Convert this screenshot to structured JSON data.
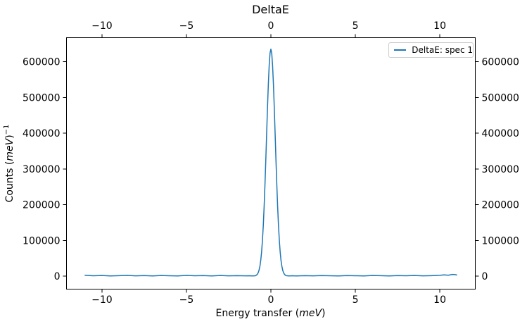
{
  "display": {
    "title": "DeltaE",
    "xlabel": {
      "pre": "Energy transfer (",
      "unit": "meV",
      "post": ")"
    },
    "ylabel": {
      "pre": "Counts (",
      "unit": "meV",
      "post": ")",
      "sup": "−1"
    },
    "legend_label": "DeltaE: spec 1"
  },
  "colors": {
    "line": "#1f77b4",
    "spine": "#000000",
    "text": "#000000",
    "legend_border": "#cccccc",
    "background": "#ffffff"
  },
  "chart_data": {
    "type": "line",
    "title": "DeltaE",
    "xlabel": "Energy transfer (meV)",
    "ylabel": "Counts (meV)^-1",
    "xlim": [
      -12.1,
      12.1
    ],
    "ylim": [
      -36000,
      667000
    ],
    "grid": false,
    "x_ticks": [
      -10,
      -5,
      0,
      5,
      10
    ],
    "x_tick_labels": [
      "−10",
      "−5",
      "0",
      "5",
      "10"
    ],
    "y_ticks": [
      0,
      100000,
      200000,
      300000,
      400000,
      500000,
      600000
    ],
    "y_tick_labels": [
      "0",
      "100000",
      "200000",
      "300000",
      "400000",
      "500000",
      "600000"
    ],
    "top_axis_mirrors_x": true,
    "right_axis_mirrors_y": true,
    "legend": {
      "position": "upper right",
      "entries": [
        "DeltaE: spec 1"
      ]
    },
    "series": [
      {
        "name": "DeltaE: spec 1",
        "color": "#1f77b4",
        "x": [
          -11.0,
          -10.5,
          -10.0,
          -9.5,
          -9.0,
          -8.5,
          -8.0,
          -7.5,
          -7.0,
          -6.5,
          -6.0,
          -5.5,
          -5.0,
          -4.5,
          -4.0,
          -3.5,
          -3.0,
          -2.5,
          -2.0,
          -1.5,
          -1.25,
          -1.1,
          -1.0,
          -0.95,
          -0.9,
          -0.85,
          -0.8,
          -0.75,
          -0.7,
          -0.65,
          -0.6,
          -0.55,
          -0.5,
          -0.45,
          -0.4,
          -0.35,
          -0.3,
          -0.25,
          -0.2,
          -0.15,
          -0.1,
          -0.05,
          0.0,
          0.05,
          0.1,
          0.15,
          0.2,
          0.25,
          0.3,
          0.35,
          0.4,
          0.45,
          0.5,
          0.55,
          0.6,
          0.65,
          0.7,
          0.75,
          0.8,
          0.85,
          0.9,
          0.95,
          1.0,
          1.1,
          1.25,
          1.5,
          2.0,
          2.5,
          3.0,
          3.5,
          4.0,
          4.5,
          5.0,
          5.5,
          6.0,
          6.5,
          7.0,
          7.5,
          8.0,
          8.5,
          9.0,
          9.5,
          10.0,
          10.25,
          10.5,
          10.75,
          10.9,
          11.0
        ],
        "y": [
          2600,
          1400,
          2100,
          900,
          1700,
          2400,
          1200,
          1900,
          800,
          2200,
          1500,
          1000,
          2300,
          1300,
          1800,
          950,
          2050,
          1250,
          1600,
          1100,
          1450,
          900,
          1100,
          1200,
          1900,
          3300,
          5900,
          10100,
          17200,
          28000,
          44700,
          68000,
          100300,
          142000,
          195000,
          257000,
          327000,
          400000,
          473000,
          538000,
          590000,
          624000,
          635000,
          623500,
          589000,
          538000,
          472000,
          400000,
          326000,
          257000,
          194000,
          142500,
          100000,
          68000,
          44000,
          28000,
          17000,
          10000,
          5800,
          3200,
          1800,
          1300,
          1200,
          1000,
          1500,
          900,
          1700,
          1100,
          2000,
          1300,
          850,
          1900,
          1450,
          1050,
          2100,
          1600,
          950,
          1800,
          1350,
          2250,
          1150,
          1750,
          2600,
          3800,
          2900,
          5200,
          4600,
          3600
        ]
      }
    ]
  }
}
